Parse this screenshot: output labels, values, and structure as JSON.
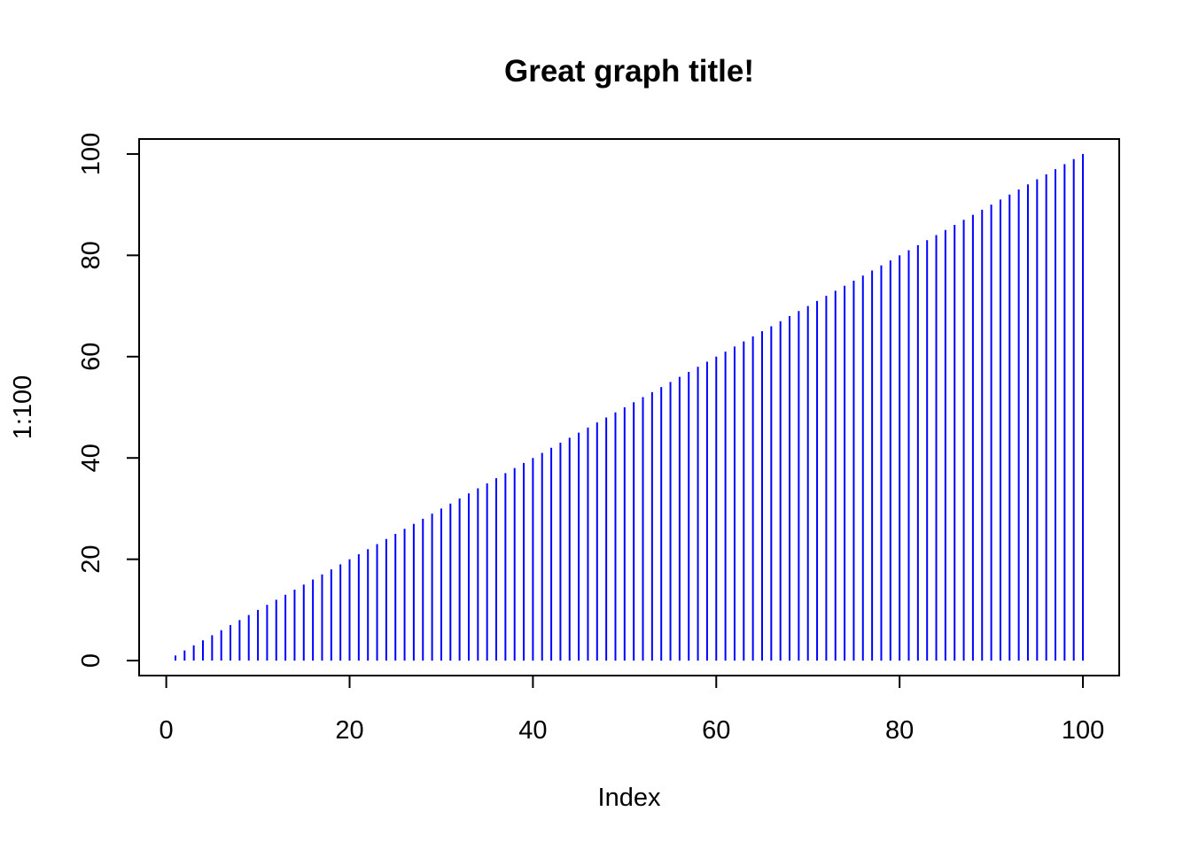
{
  "chart_data": {
    "type": "bar",
    "style": "histogram-spikes",
    "title": "Great graph title!",
    "xlabel": "Index",
    "ylabel": "1:100",
    "x": [
      1,
      2,
      3,
      4,
      5,
      6,
      7,
      8,
      9,
      10,
      11,
      12,
      13,
      14,
      15,
      16,
      17,
      18,
      19,
      20,
      21,
      22,
      23,
      24,
      25,
      26,
      27,
      28,
      29,
      30,
      31,
      32,
      33,
      34,
      35,
      36,
      37,
      38,
      39,
      40,
      41,
      42,
      43,
      44,
      45,
      46,
      47,
      48,
      49,
      50,
      51,
      52,
      53,
      54,
      55,
      56,
      57,
      58,
      59,
      60,
      61,
      62,
      63,
      64,
      65,
      66,
      67,
      68,
      69,
      70,
      71,
      72,
      73,
      74,
      75,
      76,
      77,
      78,
      79,
      80,
      81,
      82,
      83,
      84,
      85,
      86,
      87,
      88,
      89,
      90,
      91,
      92,
      93,
      94,
      95,
      96,
      97,
      98,
      99,
      100
    ],
    "values": [
      1,
      2,
      3,
      4,
      5,
      6,
      7,
      8,
      9,
      10,
      11,
      12,
      13,
      14,
      15,
      16,
      17,
      18,
      19,
      20,
      21,
      22,
      23,
      24,
      25,
      26,
      27,
      28,
      29,
      30,
      31,
      32,
      33,
      34,
      35,
      36,
      37,
      38,
      39,
      40,
      41,
      42,
      43,
      44,
      45,
      46,
      47,
      48,
      49,
      50,
      51,
      52,
      53,
      54,
      55,
      56,
      57,
      58,
      59,
      60,
      61,
      62,
      63,
      64,
      65,
      66,
      67,
      68,
      69,
      70,
      71,
      72,
      73,
      74,
      75,
      76,
      77,
      78,
      79,
      80,
      81,
      82,
      83,
      84,
      85,
      86,
      87,
      88,
      89,
      90,
      91,
      92,
      93,
      94,
      95,
      96,
      97,
      98,
      99,
      100
    ],
    "xlim": [
      -2.96,
      103.96
    ],
    "ylim": [
      -2.96,
      102.96
    ],
    "xticks": [
      0,
      20,
      40,
      60,
      80,
      100
    ],
    "yticks": [
      0,
      20,
      40,
      60,
      80,
      100
    ],
    "xtick_labels": [
      "0",
      "20",
      "40",
      "60",
      "80",
      "100"
    ],
    "ytick_labels": [
      "0",
      "20",
      "40",
      "60",
      "80",
      "100"
    ],
    "series_color": "#0000FF",
    "grid": false,
    "legend": "none"
  }
}
